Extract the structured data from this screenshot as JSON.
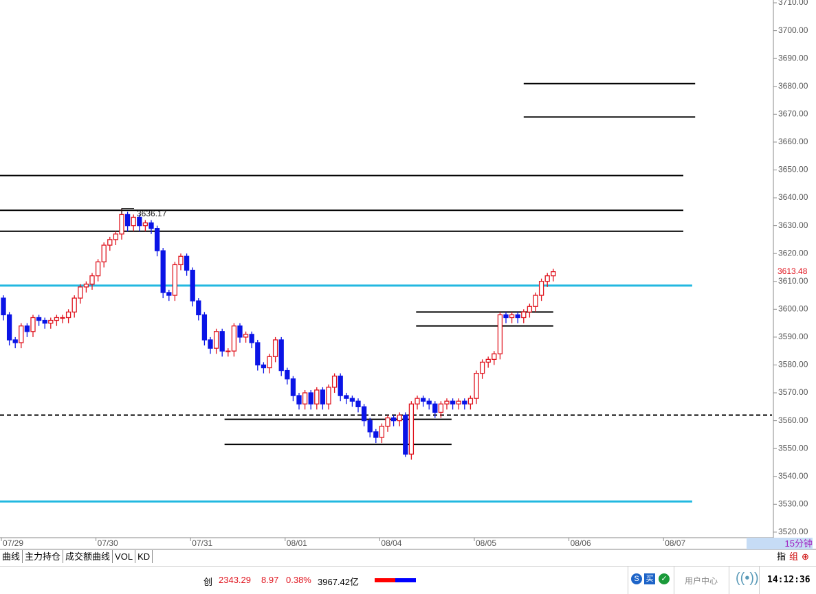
{
  "chart_data": {
    "type": "candlestick",
    "open": [
      3604,
      3598,
      3589,
      3588,
      3594,
      3592,
      3597,
      3596,
      3595,
      3596,
      3597,
      3597,
      3599,
      3604,
      3608,
      3609,
      3612,
      3617,
      3623,
      3625,
      3627,
      3634,
      3630,
      3633,
      3630,
      3631,
      3629,
      3621,
      3606,
      3605,
      3616,
      3619,
      3614,
      3603,
      3598,
      3589,
      3586,
      3592,
      3585,
      3585,
      3594,
      3590,
      3591,
      3588,
      3580,
      3579,
      3583,
      3589,
      3578,
      3575,
      3569,
      3566,
      3570,
      3566,
      3571,
      3566,
      3572,
      3576,
      3569,
      3568,
      3567,
      3565,
      3560,
      3556,
      3554,
      3558,
      3561,
      3560,
      3562,
      3548,
      3566,
      3568,
      3567,
      3566,
      3563,
      3566,
      3567,
      3566,
      3567,
      3566,
      3568,
      3577,
      3581,
      3582,
      3584,
      3598,
      3597,
      3598,
      3597,
      3599,
      3601,
      3605,
      3610,
      3612
    ],
    "high": [
      3605,
      3599,
      3590,
      3595,
      3595,
      3598,
      3598,
      3597,
      3597,
      3598,
      3598,
      3600,
      3605,
      3609,
      3610,
      3613,
      3618,
      3624,
      3626,
      3628,
      3636.17,
      3635,
      3634,
      3634,
      3632,
      3632,
      3630,
      3622,
      3607,
      3617,
      3620,
      3620,
      3615,
      3604,
      3599,
      3590,
      3593,
      3593,
      3586,
      3595,
      3595,
      3592,
      3592,
      3589,
      3581,
      3584,
      3590,
      3590,
      3579,
      3576,
      3570,
      3571,
      3571,
      3572,
      3572,
      3573,
      3577,
      3577,
      3570,
      3569,
      3568,
      3566,
      3561,
      3557,
      3559,
      3562,
      3562,
      3563,
      3563,
      3567,
      3569,
      3569,
      3568,
      3567,
      3567,
      3568,
      3568,
      3568,
      3568,
      3569,
      3578,
      3582,
      3583,
      3585,
      3599,
      3599,
      3599,
      3599,
      3600,
      3602,
      3606,
      3611,
      3613,
      3614.5
    ],
    "low": [
      3596,
      3587,
      3586,
      3586,
      3590,
      3590,
      3594,
      3593,
      3593,
      3594,
      3595,
      3595,
      3597,
      3602,
      3606,
      3607,
      3610,
      3615,
      3621,
      3623,
      3625,
      3628,
      3628,
      3628,
      3628,
      3627,
      3619,
      3604,
      3603,
      3603,
      3614,
      3612,
      3601,
      3596,
      3587,
      3584,
      3584,
      3583,
      3583,
      3583,
      3588,
      3588,
      3586,
      3578,
      3577,
      3577,
      3581,
      3576,
      3573,
      3567,
      3564,
      3564,
      3564,
      3564,
      3564,
      3564,
      3570,
      3567,
      3566,
      3565,
      3563,
      3558,
      3554,
      3552,
      3552,
      3556,
      3558,
      3558,
      3547,
      3546,
      3564,
      3565,
      3564,
      3561,
      3561,
      3564,
      3564,
      3564,
      3564,
      3564,
      3566,
      3575,
      3579,
      3580,
      3582,
      3595,
      3595,
      3595,
      3595,
      3597,
      3599,
      3603,
      3608,
      3610
    ],
    "close": [
      3598,
      3589,
      3588,
      3594,
      3592,
      3597,
      3596,
      3595,
      3596,
      3597,
      3597,
      3599,
      3604,
      3608,
      3609,
      3612,
      3617,
      3623,
      3625,
      3627,
      3634,
      3630,
      3633,
      3630,
      3631,
      3629,
      3621,
      3606,
      3605,
      3616,
      3619,
      3614,
      3603,
      3598,
      3589,
      3586,
      3592,
      3585,
      3585,
      3594,
      3590,
      3591,
      3588,
      3580,
      3579,
      3583,
      3589,
      3578,
      3575,
      3569,
      3566,
      3570,
      3566,
      3571,
      3566,
      3572,
      3576,
      3569,
      3568,
      3567,
      3565,
      3560,
      3556,
      3554,
      3558,
      3561,
      3560,
      3562,
      3548,
      3566,
      3568,
      3567,
      3566,
      3563,
      3566,
      3567,
      3566,
      3567,
      3566,
      3568,
      3577,
      3581,
      3582,
      3584,
      3598,
      3597,
      3598,
      3597,
      3599,
      3601,
      3605,
      3610,
      3612,
      3613.48
    ],
    "up_color": "#e0141e",
    "down_color": "#0a14e6",
    "ylim": [
      3518,
      3711
    ],
    "yticks": [
      {
        "value": 3520,
        "label": "3520.00"
      },
      {
        "value": 3530,
        "label": "3530.00"
      },
      {
        "value": 3540,
        "label": "3540.00"
      },
      {
        "value": 3550,
        "label": "3550.00"
      },
      {
        "value": 3560,
        "label": "3560.00"
      },
      {
        "value": 3570,
        "label": "3570.00"
      },
      {
        "value": 3580,
        "label": "3580.00"
      },
      {
        "value": 3590,
        "label": "3590.00"
      },
      {
        "value": 3600,
        "label": "3600.00"
      },
      {
        "value": 3610,
        "label": "3610.00"
      },
      {
        "value": 3620,
        "label": "3620.00"
      },
      {
        "value": 3630,
        "label": "3630.00"
      },
      {
        "value": 3640,
        "label": "3640.00"
      },
      {
        "value": 3650,
        "label": "3650.00"
      },
      {
        "value": 3660,
        "label": "3660.00"
      },
      {
        "value": 3670,
        "label": "3670.00"
      },
      {
        "value": 3680,
        "label": "3680.00"
      },
      {
        "value": 3690,
        "label": "3690.00"
      },
      {
        "value": 3700,
        "label": "3700.00"
      },
      {
        "value": 3710,
        "label": "3710.00"
      }
    ],
    "xticks": [
      {
        "value": 0,
        "label": "07/29"
      },
      {
        "value": 16,
        "label": "07/30"
      },
      {
        "value": 32,
        "label": "07/31"
      },
      {
        "value": 48,
        "label": "08/01"
      },
      {
        "value": 64,
        "label": "08/04"
      },
      {
        "value": 80,
        "label": "08/05"
      },
      {
        "value": 96,
        "label": "08/06"
      },
      {
        "value": 112,
        "label": "08/07"
      }
    ],
    "max_label": "3636.17",
    "last_label": "3613.48",
    "drawings": [
      {
        "level": 3681,
        "from": 88,
        "to": 117,
        "color": "#000000",
        "style": "solid"
      },
      {
        "level": 3669,
        "from": 88,
        "to": 117,
        "color": "#000000",
        "style": "solid"
      },
      {
        "level": 3648,
        "from": -1,
        "to": 115,
        "color": "#000000",
        "style": "solid"
      },
      {
        "level": 3635.5,
        "from": -1,
        "to": 115,
        "color": "#000000",
        "style": "solid"
      },
      {
        "level": 3628,
        "from": -1,
        "to": 115,
        "color": "#000000",
        "style": "solid"
      },
      {
        "level": 3608.5,
        "from": -1,
        "to": 116.5,
        "color": "#22b8e0",
        "style": "solid"
      },
      {
        "level": 3599,
        "from": 69.8,
        "to": 93,
        "color": "#000000",
        "style": "solid"
      },
      {
        "level": 3594,
        "from": 69.8,
        "to": 93,
        "color": "#000000",
        "style": "solid"
      },
      {
        "level": 3562,
        "from": -1,
        "to": 130,
        "color": "#000000",
        "style": "dashed"
      },
      {
        "level": 3560.5,
        "from": 37.4,
        "to": 75.8,
        "color": "#000000",
        "style": "solid"
      },
      {
        "level": 3551.5,
        "from": 37.4,
        "to": 75.8,
        "color": "#000000",
        "style": "solid"
      },
      {
        "level": 3531,
        "from": -1,
        "to": 116.5,
        "color": "#22b8e0",
        "style": "solid"
      }
    ]
  },
  "tabs": [
    "曲线",
    "主力持仓",
    "成交额曲线",
    "VOL",
    "KD"
  ],
  "period": "15分钟",
  "right_buttons": [
    "指",
    "组"
  ],
  "status": {
    "name": "创",
    "price": "2343.29",
    "change": "8.97",
    "percent": "0.38%",
    "amount": "3967.42亿",
    "icon_s": "S",
    "icon_buy": "买",
    "user_center": "用户中心",
    "time": "14:12:36"
  }
}
